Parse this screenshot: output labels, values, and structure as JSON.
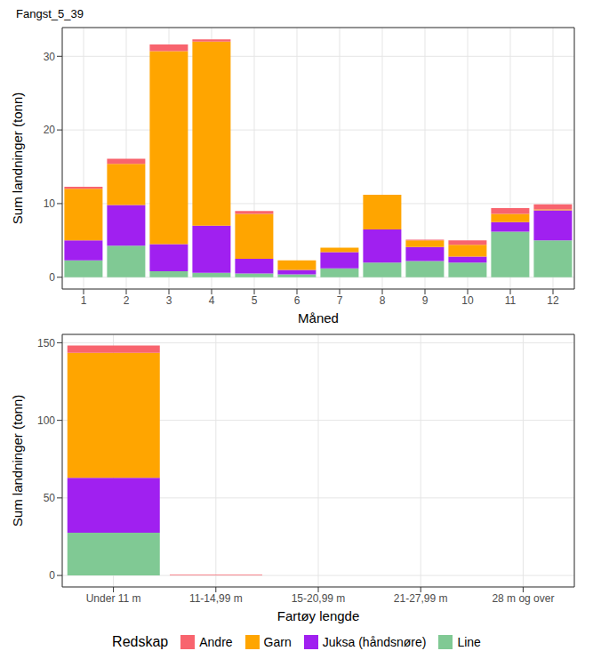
{
  "chart_data": [
    {
      "type": "bar",
      "title": "Fangst_5_39",
      "stacked": true,
      "grid": true,
      "x_label": "Måned",
      "y_label": "Sum landninger (tonn)",
      "categories": [
        "1",
        "2",
        "3",
        "4",
        "5",
        "6",
        "7",
        "8",
        "9",
        "10",
        "11",
        "12"
      ],
      "ylim": [
        -1.6,
        33.9
      ],
      "yticks": [
        0,
        10,
        20,
        30
      ],
      "series": [
        {
          "name": "Andre",
          "color": "#F8646E",
          "values": [
            0.3,
            0.7,
            0.9,
            0.3,
            0.4,
            0,
            0,
            0,
            0.1,
            0.6,
            0.8,
            0.7
          ]
        },
        {
          "name": "Garn",
          "color": "#FFA500",
          "values": [
            7.0,
            5.6,
            26.2,
            25.0,
            6.1,
            1.3,
            0.6,
            4.7,
            0.9,
            1.6,
            1.1,
            0.1
          ]
        },
        {
          "name": "Juksa (håndsnøre)",
          "color": "#A020F0",
          "values": [
            2.7,
            5.5,
            3.7,
            6.4,
            2.0,
            0.6,
            2.2,
            4.5,
            1.9,
            0.8,
            1.3,
            4.1
          ]
        },
        {
          "name": "Line",
          "color": "#80C994",
          "values": [
            2.3,
            4.3,
            0.8,
            0.6,
            0.5,
            0.4,
            1.2,
            2.0,
            2.2,
            2.0,
            6.2,
            5.0
          ]
        }
      ]
    },
    {
      "type": "bar",
      "stacked": true,
      "grid": true,
      "legend": "bottom",
      "legend_title": "Redskap",
      "x_label": "Fartøy lengde",
      "y_label": "Sum landninger (tonn)",
      "categories": [
        "Under 11 m",
        "11-14,99 m",
        "15-20,99 m",
        "21-27,99 m",
        "28 m og over"
      ],
      "ylim": [
        -7.4,
        155.4
      ],
      "yticks": [
        0,
        50,
        100,
        150
      ],
      "series": [
        {
          "name": "Andre",
          "color": "#F8646E",
          "values": [
            4.8,
            0.5,
            0,
            0,
            0
          ]
        },
        {
          "name": "Garn",
          "color": "#FFA500",
          "values": [
            80.5,
            0,
            0,
            0,
            0
          ]
        },
        {
          "name": "Juksa (håndsnøre)",
          "color": "#A020F0",
          "values": [
            35.5,
            0,
            0,
            0,
            0
          ]
        },
        {
          "name": "Line",
          "color": "#80C994",
          "values": [
            27.5,
            0,
            0,
            0,
            0
          ]
        }
      ]
    }
  ]
}
